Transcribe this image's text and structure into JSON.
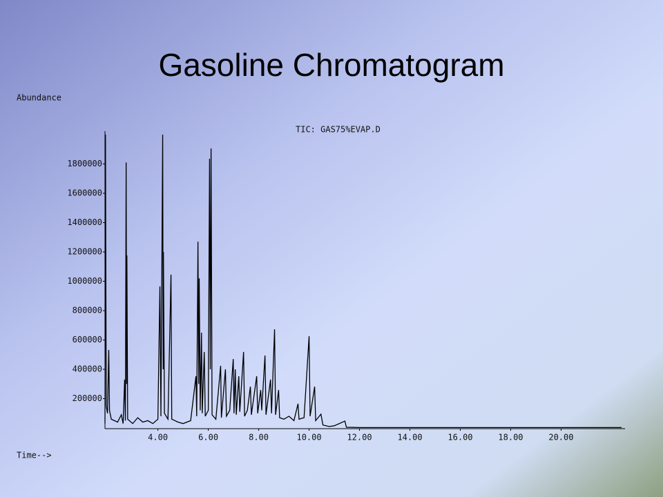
{
  "chart_data": {
    "type": "line",
    "title": "Gasoline Chromatogram",
    "y_label": "Abundance",
    "x_label": "Time-->",
    "annotation": "TIC: GAS75%EVAP.D",
    "color": "#000000",
    "xlim": [
      1.9,
      22.4
    ],
    "ylim": [
      0,
      2000000
    ],
    "xticks": [
      {
        "value": 4,
        "label": "4.00"
      },
      {
        "value": 6,
        "label": "6.00"
      },
      {
        "value": 8,
        "label": "8.00"
      },
      {
        "value": 10,
        "label": "10.00"
      },
      {
        "value": 12,
        "label": "12.00"
      },
      {
        "value": 14,
        "label": "14.00"
      },
      {
        "value": 16,
        "label": "16.00"
      },
      {
        "value": 18,
        "label": "18.00"
      },
      {
        "value": 20,
        "label": "20.00"
      }
    ],
    "yticks": [
      200000,
      400000,
      600000,
      800000,
      1000000,
      1200000,
      1400000,
      1600000,
      1800000
    ],
    "x": [
      1.9,
      1.92,
      1.95,
      2.0,
      2.05,
      2.08,
      2.15,
      2.4,
      2.55,
      2.62,
      2.68,
      2.71,
      2.74,
      2.76,
      2.77,
      2.8,
      3.0,
      3.2,
      3.4,
      3.6,
      3.8,
      4.0,
      4.08,
      4.12,
      4.19,
      4.21,
      4.22,
      4.26,
      4.4,
      4.52,
      4.55,
      4.8,
      5.0,
      5.3,
      5.51,
      5.54,
      5.59,
      5.62,
      5.64,
      5.68,
      5.73,
      5.76,
      5.84,
      5.88,
      6.0,
      6.05,
      6.08,
      6.11,
      6.15,
      6.3,
      6.49,
      6.52,
      6.68,
      6.72,
      6.85,
      6.99,
      7.02,
      7.07,
      7.11,
      7.21,
      7.25,
      7.4,
      7.44,
      7.55,
      7.67,
      7.71,
      7.92,
      7.96,
      8.08,
      8.12,
      8.25,
      8.29,
      8.47,
      8.51,
      8.63,
      8.67,
      8.79,
      8.83,
      9.0,
      9.2,
      9.4,
      9.56,
      9.6,
      9.8,
      10.0,
      10.04,
      10.22,
      10.26,
      10.47,
      10.55,
      10.8,
      11.0,
      11.42,
      11.48,
      12.0,
      22.4
    ],
    "values": [
      30000,
      2000000,
      150000,
      100000,
      532000,
      120000,
      60000,
      40000,
      90000,
      30000,
      330000,
      50000,
      1810000,
      300000,
      1176000,
      60000,
      30000,
      70000,
      40000,
      50000,
      30000,
      60000,
      965000,
      80000,
      2000000,
      400000,
      1200000,
      100000,
      60000,
      1045000,
      60000,
      40000,
      30000,
      50000,
      353000,
      80000,
      1270000,
      300000,
      1020000,
      120000,
      650000,
      100000,
      518000,
      80000,
      120000,
      1835000,
      400000,
      1906000,
      90000,
      60000,
      424000,
      70000,
      400000,
      80000,
      120000,
      470000,
      100000,
      400000,
      90000,
      353000,
      110000,
      518000,
      80000,
      120000,
      282000,
      90000,
      353000,
      100000,
      259000,
      120000,
      494000,
      90000,
      330000,
      100000,
      673000,
      90000,
      259000,
      70000,
      60000,
      80000,
      50000,
      165000,
      60000,
      70000,
      626000,
      80000,
      282000,
      50000,
      94000,
      20000,
      10000,
      15000,
      47000,
      5000,
      3000,
      3000
    ]
  }
}
